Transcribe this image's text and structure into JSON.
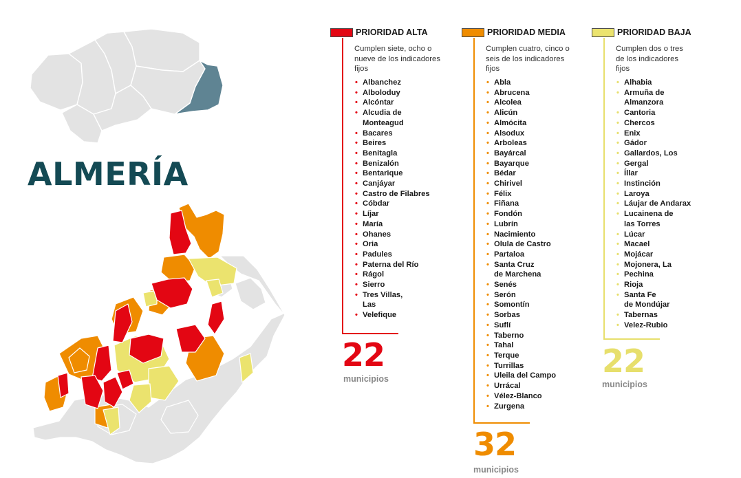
{
  "title": "ALMERÍA",
  "colors": {
    "alta": "#e30613",
    "media": "#ef8c00",
    "baja": "#ebe36e",
    "none": "#e3e3e3",
    "highlight": "#5f8493",
    "title": "#144a54"
  },
  "categories": [
    {
      "id": "alta",
      "title": "PRIORIDAD ALTA",
      "description": "Cumplen siete, ocho o nueve  de los indicadores fijos",
      "count": "22",
      "count_label": "municipios",
      "municipalities": [
        "Albanchez",
        "Alboloduy",
        "Alcóntar",
        "Alcudia de\nMonteagud",
        "Bacares",
        "Beires",
        "Benitagla",
        "Benizalón",
        "Bentarique",
        "Canjáyar",
        "Castro de Filabres",
        "Cóbdar",
        "Líjar",
        "María",
        "Ohanes",
        "Oria",
        "Padules",
        "Paterna del Río",
        "Rágol",
        "Sierro",
        "Tres Villas,\nLas",
        "Velefique"
      ]
    },
    {
      "id": "media",
      "title": "PRIORIDAD MEDIA",
      "description": "Cumplen cuatro, cinco o seis de los indicadores fijos",
      "count": "32",
      "count_label": "municipios",
      "municipalities": [
        "Abla",
        "Abrucena",
        "Alcolea",
        "Alicún",
        "Almócita",
        "Alsodux",
        "Arboleas",
        "Bayárcal",
        "Bayarque",
        "Bédar",
        "Chirivel",
        "Félix",
        "Fiñana",
        "Fondón",
        "Lubrín",
        "Nacimiento",
        "Olula de Castro",
        "Partaloa",
        "Santa Cruz\nde Marchena",
        "Senés",
        "Serón",
        "Somontín",
        "Sorbas",
        "Suflí",
        "Taberno",
        "Tahal",
        "Terque",
        "Turrillas",
        "Uleila del Campo",
        "Urrácal",
        "Vélez-Blanco",
        "Zurgena"
      ]
    },
    {
      "id": "baja",
      "title": "PRIORIDAD BAJA",
      "description": "Cumplen dos o tres de los indicadores fijos",
      "count": "22",
      "count_label": "municipios",
      "municipalities": [
        "Alhabia",
        "Armuña de\nAlmanzora",
        "Cantoria",
        "Chercos",
        "Enix",
        "Gádor",
        "Gallardos, Los",
        "Gergal",
        "Íllar",
        "Instinción",
        "Laroya",
        "Láujar de Andarax",
        "Lucainena de\nlas Torres",
        "Lúcar",
        "Macael",
        "Mojácar",
        "Mojonera, La",
        "Pechina",
        "Rioja",
        "Santa Fe\nde Mondújar",
        "Tabernas",
        "Velez-Rubio"
      ]
    }
  ]
}
